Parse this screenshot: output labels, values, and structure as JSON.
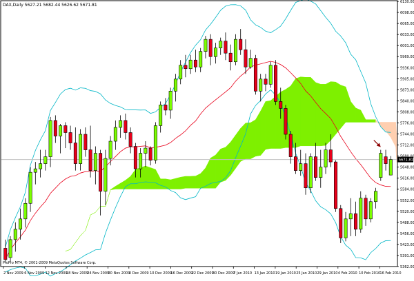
{
  "chart_data": {
    "type": "candlestick",
    "title": "DAX,Daily 5627.21 5682.44 5626.62 5671.81",
    "watermark": "ProPro MT4, © 2001-2009 MetaQuotes Software Corp.",
    "ylim": [
      5362,
      6130
    ],
    "y_ticks": [
      "6130.00",
      "6098.00",
      "6065.00",
      "6033.00",
      "6001.00",
      "5969.00",
      "5936.00",
      "5905.00",
      "5873.00",
      "5840.00",
      "5808.00",
      "5776.00",
      "5744.00",
      "5712.00",
      "5680.00",
      "5648.00",
      "5616.00",
      "5584.00",
      "5552.00",
      "5520.00",
      "5488.00",
      "5456.00",
      "5423.00",
      "5391.00",
      "5362.00"
    ],
    "price_label": "5671.81",
    "x_ticks": [
      "2 Nov 2009",
      "6 Nov 2009",
      "12 Nov 2009",
      "18 Nov 2009",
      "24 Nov 2009",
      "30 Nov 2009",
      "4 Dec 2009",
      "10 Dec 2009",
      "16 Dec 2009",
      "22 Dec 2009",
      "30 Dec 2009",
      "7 Jan 2010",
      "13 Jan 2010",
      "19 Jan 2010",
      "25 Jan 2010",
      "29 Jan 2010",
      "4 Feb 2010",
      "10 Feb 2010",
      "16 Feb 2010"
    ],
    "candles": [
      {
        "o": 5415,
        "h": 5440,
        "l": 5373,
        "c": 5382
      },
      {
        "o": 5388,
        "h": 5450,
        "l": 5376,
        "c": 5440
      },
      {
        "o": 5440,
        "h": 5490,
        "l": 5405,
        "c": 5470
      },
      {
        "o": 5470,
        "h": 5530,
        "l": 5440,
        "c": 5500
      },
      {
        "o": 5500,
        "h": 5560,
        "l": 5475,
        "c": 5545
      },
      {
        "o": 5545,
        "h": 5650,
        "l": 5520,
        "c": 5635
      },
      {
        "o": 5635,
        "h": 5665,
        "l": 5600,
        "c": 5645
      },
      {
        "o": 5645,
        "h": 5700,
        "l": 5620,
        "c": 5660
      },
      {
        "o": 5660,
        "h": 5700,
        "l": 5640,
        "c": 5680
      },
      {
        "o": 5680,
        "h": 5795,
        "l": 5650,
        "c": 5785
      },
      {
        "o": 5785,
        "h": 5800,
        "l": 5720,
        "c": 5740
      },
      {
        "o": 5740,
        "h": 5775,
        "l": 5690,
        "c": 5770
      },
      {
        "o": 5770,
        "h": 5780,
        "l": 5705,
        "c": 5750
      },
      {
        "o": 5750,
        "h": 5770,
        "l": 5700,
        "c": 5720
      },
      {
        "o": 5720,
        "h": 5765,
        "l": 5640,
        "c": 5660
      },
      {
        "o": 5660,
        "h": 5760,
        "l": 5640,
        "c": 5745
      },
      {
        "o": 5745,
        "h": 5765,
        "l": 5680,
        "c": 5700
      },
      {
        "o": 5700,
        "h": 5770,
        "l": 5620,
        "c": 5640
      },
      {
        "o": 5640,
        "h": 5710,
        "l": 5600,
        "c": 5690
      },
      {
        "o": 5690,
        "h": 5700,
        "l": 5510,
        "c": 5580
      },
      {
        "o": 5580,
        "h": 5700,
        "l": 5540,
        "c": 5675
      },
      {
        "o": 5675,
        "h": 5740,
        "l": 5655,
        "c": 5725
      },
      {
        "o": 5725,
        "h": 5785,
        "l": 5700,
        "c": 5765
      },
      {
        "o": 5765,
        "h": 5800,
        "l": 5735,
        "c": 5785
      },
      {
        "o": 5785,
        "h": 5805,
        "l": 5730,
        "c": 5750
      },
      {
        "o": 5750,
        "h": 5765,
        "l": 5690,
        "c": 5710
      },
      {
        "o": 5710,
        "h": 5720,
        "l": 5620,
        "c": 5645
      },
      {
        "o": 5645,
        "h": 5705,
        "l": 5620,
        "c": 5690
      },
      {
        "o": 5690,
        "h": 5725,
        "l": 5650,
        "c": 5705
      },
      {
        "o": 5705,
        "h": 5710,
        "l": 5655,
        "c": 5670
      },
      {
        "o": 5670,
        "h": 5780,
        "l": 5660,
        "c": 5770
      },
      {
        "o": 5770,
        "h": 5840,
        "l": 5750,
        "c": 5830
      },
      {
        "o": 5830,
        "h": 5850,
        "l": 5800,
        "c": 5815
      },
      {
        "o": 5815,
        "h": 5880,
        "l": 5790,
        "c": 5870
      },
      {
        "o": 5870,
        "h": 5920,
        "l": 5840,
        "c": 5905
      },
      {
        "o": 5905,
        "h": 5960,
        "l": 5890,
        "c": 5945
      },
      {
        "o": 5945,
        "h": 5975,
        "l": 5910,
        "c": 5935
      },
      {
        "o": 5935,
        "h": 5975,
        "l": 5920,
        "c": 5960
      },
      {
        "o": 5960,
        "h": 5990,
        "l": 5925,
        "c": 5940
      },
      {
        "o": 5940,
        "h": 5995,
        "l": 5925,
        "c": 5985
      },
      {
        "o": 5985,
        "h": 6030,
        "l": 5965,
        "c": 6020
      },
      {
        "o": 6020,
        "h": 6035,
        "l": 5945,
        "c": 5970
      },
      {
        "o": 5970,
        "h": 6010,
        "l": 5950,
        "c": 5995
      },
      {
        "o": 5995,
        "h": 6025,
        "l": 5975,
        "c": 6015
      },
      {
        "o": 6015,
        "h": 6040,
        "l": 5960,
        "c": 5980
      },
      {
        "o": 5980,
        "h": 6005,
        "l": 5930,
        "c": 5955
      },
      {
        "o": 5955,
        "h": 6035,
        "l": 5945,
        "c": 6020
      },
      {
        "o": 6020,
        "h": 6050,
        "l": 5975,
        "c": 5990
      },
      {
        "o": 5990,
        "h": 6020,
        "l": 5920,
        "c": 5940
      },
      {
        "o": 5940,
        "h": 5990,
        "l": 5935,
        "c": 5965
      },
      {
        "o": 5965,
        "h": 5975,
        "l": 5860,
        "c": 5870
      },
      {
        "o": 5870,
        "h": 5920,
        "l": 5840,
        "c": 5905
      },
      {
        "o": 5905,
        "h": 5920,
        "l": 5870,
        "c": 5890
      },
      {
        "o": 5890,
        "h": 5955,
        "l": 5880,
        "c": 5945
      },
      {
        "o": 5945,
        "h": 5960,
        "l": 5830,
        "c": 5840
      },
      {
        "o": 5840,
        "h": 5880,
        "l": 5790,
        "c": 5820
      },
      {
        "o": 5820,
        "h": 5830,
        "l": 5730,
        "c": 5745
      },
      {
        "o": 5745,
        "h": 5755,
        "l": 5660,
        "c": 5680
      },
      {
        "o": 5680,
        "h": 5720,
        "l": 5630,
        "c": 5640
      },
      {
        "o": 5640,
        "h": 5700,
        "l": 5625,
        "c": 5660
      },
      {
        "o": 5660,
        "h": 5690,
        "l": 5570,
        "c": 5590
      },
      {
        "o": 5590,
        "h": 5690,
        "l": 5575,
        "c": 5680
      },
      {
        "o": 5680,
        "h": 5720,
        "l": 5610,
        "c": 5620
      },
      {
        "o": 5620,
        "h": 5700,
        "l": 5590,
        "c": 5650
      },
      {
        "o": 5650,
        "h": 5720,
        "l": 5630,
        "c": 5700
      },
      {
        "o": 5700,
        "h": 5745,
        "l": 5650,
        "c": 5665
      },
      {
        "o": 5665,
        "h": 5670,
        "l": 5520,
        "c": 5530
      },
      {
        "o": 5530,
        "h": 5540,
        "l": 5430,
        "c": 5445
      },
      {
        "o": 5445,
        "h": 5520,
        "l": 5435,
        "c": 5500
      },
      {
        "o": 5500,
        "h": 5560,
        "l": 5450,
        "c": 5515
      },
      {
        "o": 5515,
        "h": 5550,
        "l": 5450,
        "c": 5470
      },
      {
        "o": 5470,
        "h": 5580,
        "l": 5460,
        "c": 5560
      },
      {
        "o": 5560,
        "h": 5570,
        "l": 5480,
        "c": 5500
      },
      {
        "o": 5500,
        "h": 5560,
        "l": 5490,
        "c": 5550
      },
      {
        "o": 5550,
        "h": 5590,
        "l": 5530,
        "c": 5580
      },
      {
        "o": 5620,
        "h": 5700,
        "l": 5610,
        "c": 5690
      },
      {
        "o": 5680,
        "h": 5700,
        "l": 5640,
        "c": 5660
      },
      {
        "o": 5627,
        "h": 5682,
        "l": 5626,
        "c": 5672
      }
    ],
    "colors": {
      "up": "#7cff00",
      "down": "#e8001a",
      "cloud": "#7ef000",
      "cloud_bear": "#ffcfb0",
      "ma": "#e8001a",
      "bands": "#00b6c6",
      "arrow": "#8b0000"
    }
  }
}
